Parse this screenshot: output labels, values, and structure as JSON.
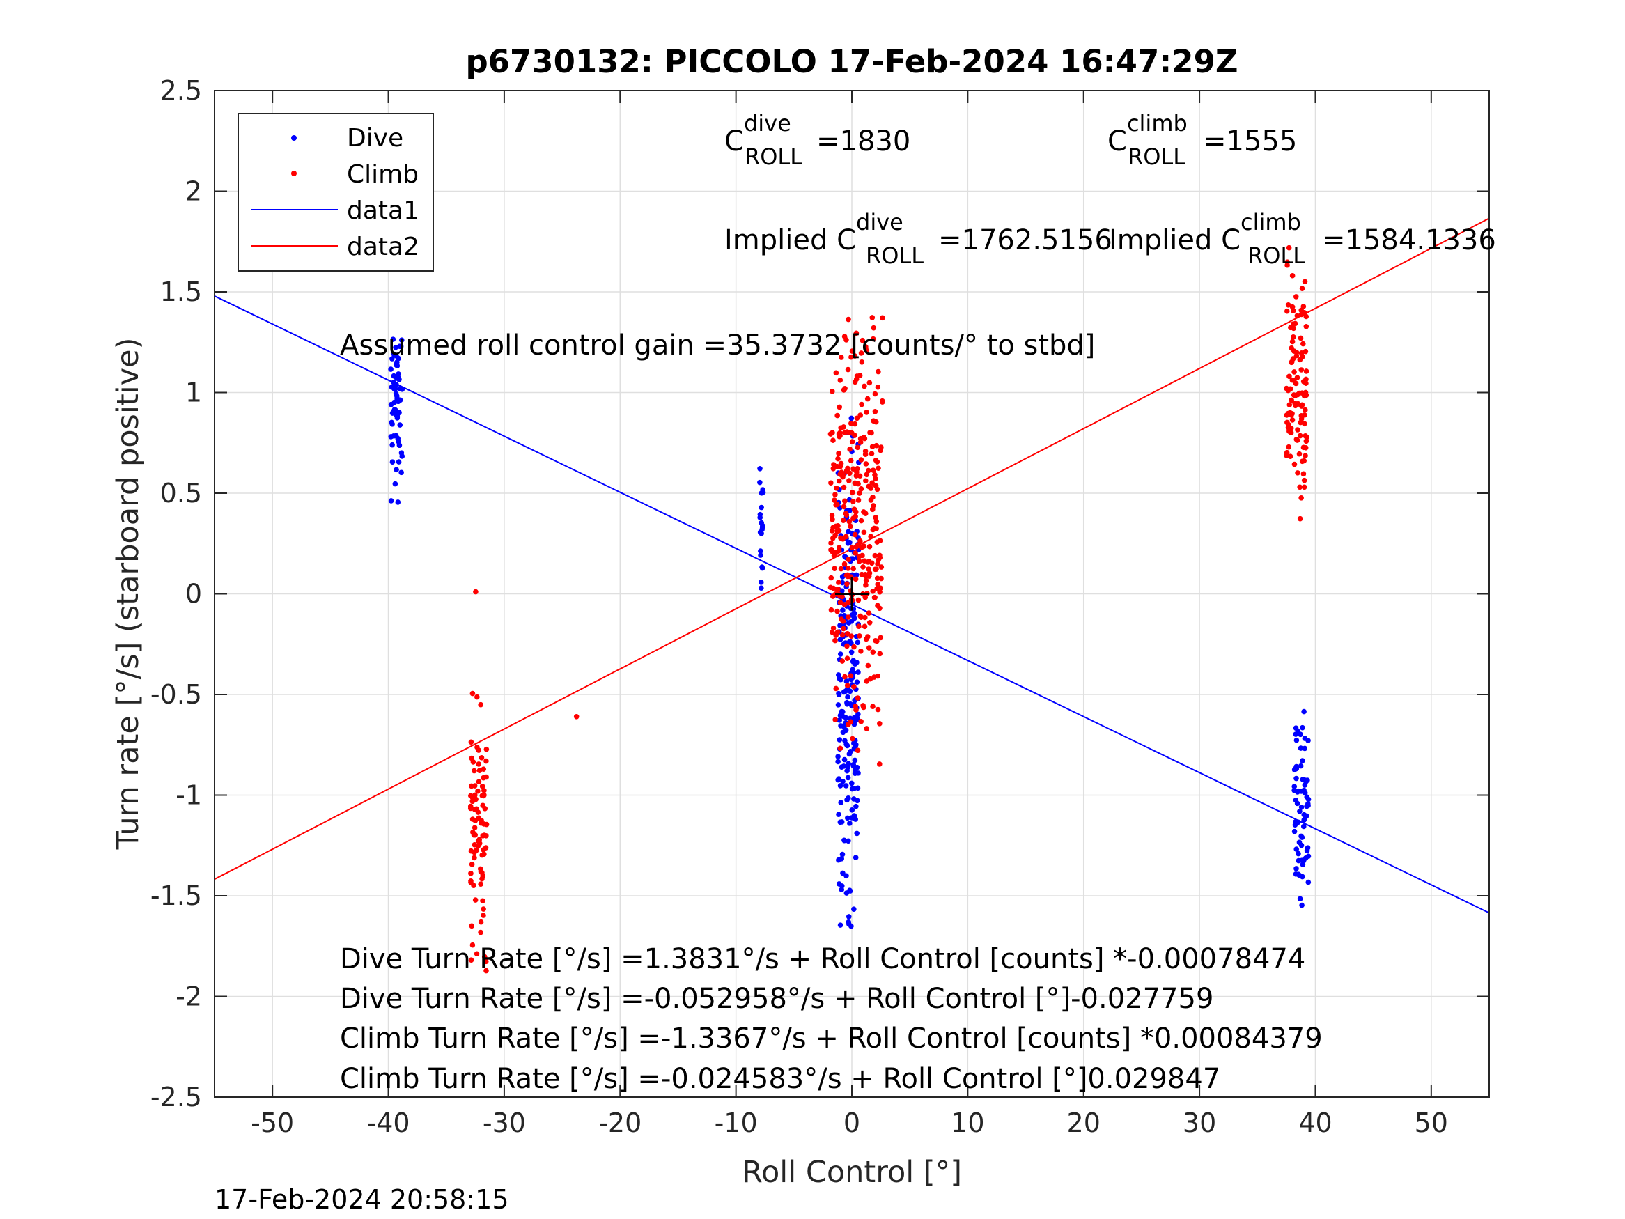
{
  "chart_data": {
    "type": "scatter",
    "title": "p6730132: PICCOLO 17-Feb-2024 16:47:29Z",
    "xlabel": "Roll Control [°]",
    "ylabel": "Turn rate [°/s] (starboard positive)",
    "xlim": [
      -55,
      55
    ],
    "ylim": [
      -2.5,
      2.5
    ],
    "xticks": [
      "-50",
      "-40",
      "-30",
      "-20",
      "-10",
      "0",
      "10",
      "20",
      "30",
      "40",
      "50"
    ],
    "yticks": [
      "2.5",
      "2",
      "1.5",
      "1",
      "0.5",
      "0",
      "-0.5",
      "-1",
      "-1.5",
      "-2",
      "-2.5"
    ],
    "grid": true,
    "legend_placement": "top-left",
    "legend": [
      "Dive",
      "Climb",
      "data1",
      "data2"
    ],
    "colors": {
      "dive": "#0000ff",
      "climb": "#ff0000",
      "axes": "#262626",
      "grid": "#dfdfdf"
    },
    "series": [
      {
        "name": "Dive",
        "type": "scatter",
        "clusters": [
          {
            "x": -39.3,
            "x_spread": 1.0,
            "y_min": 0.43,
            "y_max": 1.43,
            "n": 60
          },
          {
            "x": -7.8,
            "x_spread": 0.3,
            "y_min": -0.04,
            "y_max": 0.8,
            "n": 20
          },
          {
            "x": -0.3,
            "x_spread": 1.8,
            "y_min": -1.67,
            "y_max": 0.9,
            "n": 220
          },
          {
            "x": 38.8,
            "x_spread": 1.3,
            "y_min": -1.6,
            "y_max": -0.55,
            "n": 70
          }
        ]
      },
      {
        "name": "Climb",
        "type": "scatter",
        "clusters": [
          {
            "x": -32.2,
            "x_spread": 1.4,
            "y_min": -1.91,
            "y_max": -0.48,
            "n": 90
          },
          {
            "x": -23.8,
            "x_spread": 0.1,
            "y_min": -0.61,
            "y_max": -0.61,
            "n": 1
          },
          {
            "x": -32.5,
            "x_spread": 0.1,
            "y_min": 0.01,
            "y_max": 0.01,
            "n": 1
          },
          {
            "x": 0.4,
            "x_spread": 4.5,
            "y_min": -0.85,
            "y_max": 1.38,
            "n": 320
          },
          {
            "x": 38.4,
            "x_spread": 1.8,
            "y_min": 0.3,
            "y_max": 1.72,
            "n": 110
          }
        ]
      },
      {
        "name": "data1",
        "type": "line",
        "x": [
          -55,
          55
        ],
        "y": [
          1.4795,
          -1.5848
        ]
      },
      {
        "name": "data2",
        "type": "line",
        "x": [
          -55,
          55
        ],
        "y": [
          -1.4176,
          1.8656
        ]
      }
    ],
    "marker": {
      "x": 0,
      "y": 0,
      "symbol": "+"
    }
  },
  "annotations": {
    "c_dive_base": "C",
    "c_dive_sup": "dive",
    "c_dive_sub": "ROLL",
    "c_dive_value": "=1830",
    "c_climb_base": "C",
    "c_climb_sup": "climb",
    "c_climb_sub": "ROLL",
    "c_climb_value": "=1555",
    "implied_dive_prefix": "Implied C",
    "implied_dive_sup": "dive",
    "implied_dive_sub": "ROLL",
    "implied_dive_value": "=1762.5156",
    "implied_climb_prefix": "Implied C",
    "implied_climb_sup": "climb",
    "implied_climb_sub": "ROLL",
    "implied_climb_value": "=1584.1336",
    "gain": "Assumed roll control gain =35.3732 [counts/° to stbd]",
    "eq1": "Dive Turn Rate [°/s] =1.3831°/s + Roll Control [counts] *-0.00078474",
    "eq2": "Dive Turn Rate [°/s] =-0.052958°/s + Roll Control [°]-0.027759",
    "eq3": "Climb Turn Rate [°/s] =-1.3367°/s + Roll Control [counts] *0.00084379",
    "eq4": "Climb Turn Rate [°/s] =-0.024583°/s + Roll Control [°]0.029847"
  },
  "timestamp": "17-Feb-2024 20:58:15"
}
